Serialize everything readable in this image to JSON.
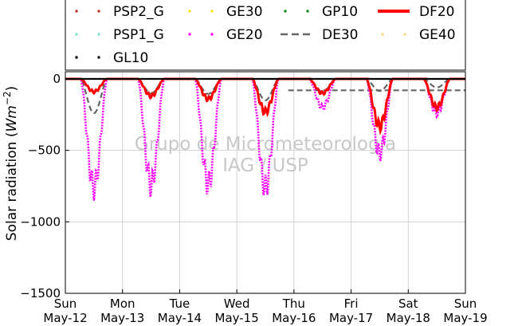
{
  "chart_data": {
    "type": "line",
    "title": "",
    "xlabel": "",
    "ylabel": "Solar radiation (Wm⁻²)",
    "ylabel_main": "Solar radiation (",
    "ylabel_unit": "Wm",
    "ylabel_exp": "−2",
    "ylabel_close": ")",
    "ylim": [
      -1500,
      50
    ],
    "yticks": [
      0,
      -500,
      -1000,
      -1500
    ],
    "ytick_labels": [
      "0",
      "−500",
      "−1000",
      "−1500"
    ],
    "xticks_days": [
      "Sun",
      "Mon",
      "Tue",
      "Wed",
      "Thu",
      "Fri",
      "Sat",
      "Sun"
    ],
    "xticks_dates": [
      "May-12",
      "May-13",
      "May-14",
      "May-15",
      "May-16",
      "May-17",
      "May-18",
      "May-19"
    ],
    "grid": true,
    "legend_position": "top",
    "watermark": [
      "Grupo de Micrometeorologia",
      "IAG / USP"
    ],
    "series_legend": [
      {
        "name": "PSP2_G",
        "color": "#c0392b",
        "style": "dots"
      },
      {
        "name": "GE30",
        "color": "#ffe020",
        "style": "dots"
      },
      {
        "name": "GP10",
        "color": "#1a8a1a",
        "style": "dots"
      },
      {
        "name": "DF20",
        "color": "#ff0000",
        "style": "line"
      },
      {
        "name": "PSP1_G",
        "color": "#7fe0d0",
        "style": "dots"
      },
      {
        "name": "GE20",
        "color": "#ff00ff",
        "style": "dots"
      },
      {
        "name": "DE30",
        "color": "#666666",
        "style": "dashed"
      },
      {
        "name": "GE40",
        "color": "#f5d98a",
        "style": "dots"
      },
      {
        "name": "GL10",
        "color": "#000000",
        "style": "dots"
      }
    ],
    "daily_peaks": {
      "days_offset": [
        0,
        1,
        2,
        3,
        4,
        5,
        6
      ],
      "GE20_min": [
        -760,
        -740,
        -735,
        -760,
        -200,
        -520,
        -240
      ],
      "DF20_min": [
        -90,
        -120,
        -140,
        -230,
        -100,
        -330,
        -200
      ],
      "DE30_min": [
        -240,
        -100,
        -105,
        -150,
        -90,
        -85,
        -60
      ],
      "DE30_baseline_after": -80
    }
  }
}
